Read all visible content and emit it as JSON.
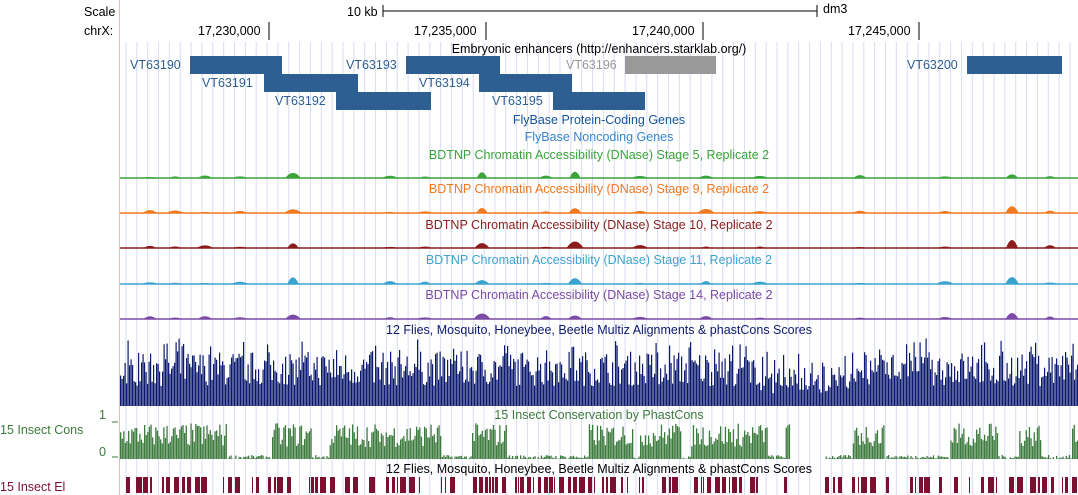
{
  "header": {
    "scale_label": "Scale",
    "chrom_label": "chrX:",
    "scalebar_label": "10 kb",
    "assembly": "dm3",
    "positions": [
      "17,230,000",
      "17,235,000",
      "17,240,000",
      "17,245,000"
    ]
  },
  "tracks": {
    "enhancers": {
      "title": "Embryonic enhancers (http://enhancers.starklab.org/)",
      "features": [
        {
          "name": "VT63190",
          "color": "#2e5f93"
        },
        {
          "name": "VT63191",
          "color": "#2e5f93"
        },
        {
          "name": "VT63192",
          "color": "#2e5f93"
        },
        {
          "name": "VT63193",
          "color": "#2e5f93"
        },
        {
          "name": "VT63194",
          "color": "#2e5f93"
        },
        {
          "name": "VT63195",
          "color": "#2e5f93"
        },
        {
          "name": "VT63196",
          "color": "#999999"
        },
        {
          "name": "VT63200",
          "color": "#2e5f93"
        }
      ]
    },
    "flybase_coding": {
      "title": "FlyBase Protein-Coding Genes",
      "color": "#14559b"
    },
    "flybase_noncoding": {
      "title": "FlyBase Noncoding Genes",
      "color": "#3585d0"
    },
    "dnase": [
      {
        "title": "BDTNP Chromatin Accessibility (DNase) Stage 5, Replicate 2",
        "color": "#3aa33a"
      },
      {
        "title": "BDTNP Chromatin Accessibility (DNase) Stage 9, Replicate 2",
        "color": "#f0781e"
      },
      {
        "title": "BDTNP Chromatin Accessibility (DNase) Stage 10, Replicate 2",
        "color": "#8c1c1c"
      },
      {
        "title": "BDTNP Chromatin Accessibility (DNase) Stage 11, Replicate 2",
        "color": "#3ba3d0"
      },
      {
        "title": "BDTNP Chromatin Accessibility (DNase) Stage 14, Replicate 2",
        "color": "#7a4aa6"
      }
    ],
    "multiz": {
      "title": "12 Flies, Mosquito, Honeybee, Beetle Multiz Alignments & phastCons Scores",
      "color": "#0c1a6e"
    },
    "cons": {
      "title": "15 Insect Conservation by PhastCons",
      "side_label": "15 Insect Cons",
      "y_max": "1",
      "y_min": "0",
      "color": "#3d7a3d"
    },
    "elements": {
      "title": "12 Flies, Mosquito, Honeybee, Beetle Multiz Alignments & phastCons Scores",
      "side_label": "15 Insect El",
      "color": "#7b1030"
    }
  }
}
